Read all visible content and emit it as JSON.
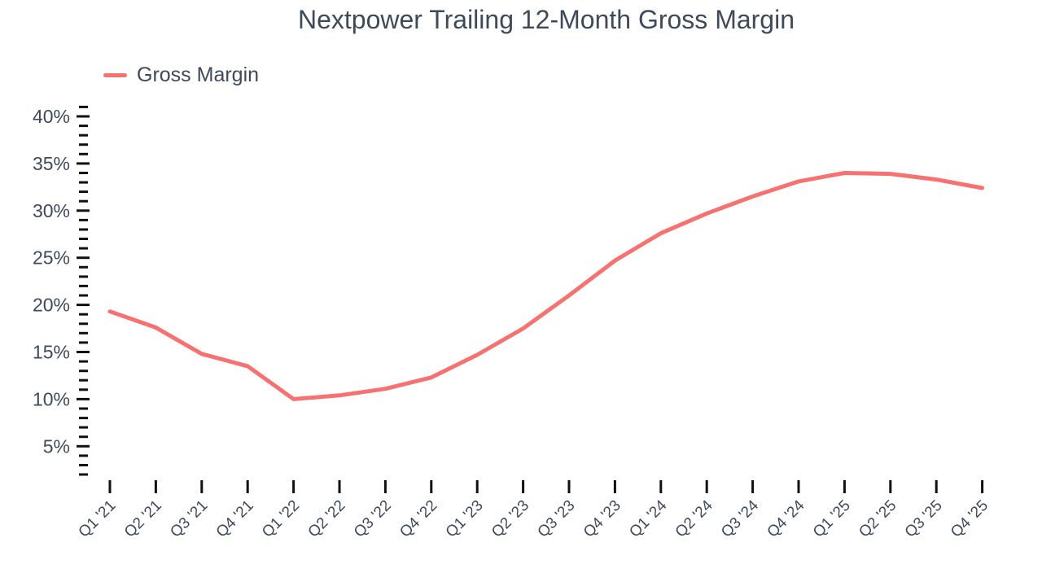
{
  "title": "Nextpower Trailing 12-Month Gross Margin",
  "legend": {
    "label": "Gross Margin"
  },
  "colors": {
    "line": "#f87171",
    "text": "#3e4a5a",
    "tick": "#111111",
    "background": "#ffffff"
  },
  "chart_data": {
    "type": "line",
    "title": "Nextpower Trailing 12-Month Gross Margin",
    "categories": [
      "Q1 '21",
      "Q2 '21",
      "Q3 '21",
      "Q4 '21",
      "Q1 '22",
      "Q2 '22",
      "Q3 '22",
      "Q4 '22",
      "Q1 '23",
      "Q2 '23",
      "Q3 '23",
      "Q4 '23",
      "Q1 '24",
      "Q2 '24",
      "Q3 '24",
      "Q4 '24",
      "Q1 '25",
      "Q2 '25",
      "Q3 '25",
      "Q4 '25"
    ],
    "series": [
      {
        "name": "Gross Margin",
        "color": "#f87171",
        "values": [
          19.3,
          17.6,
          14.8,
          13.5,
          10.0,
          10.4,
          11.1,
          12.3,
          14.7,
          17.5,
          21.0,
          24.7,
          27.6,
          29.7,
          31.5,
          33.1,
          34.0,
          33.9,
          33.3,
          32.4
        ]
      }
    ],
    "unit": "%",
    "xlabel": "",
    "ylabel": "",
    "ylim": [
      2,
      41
    ],
    "y_major_ticks": [
      5,
      10,
      15,
      20,
      25,
      30,
      35,
      40
    ],
    "y_tick_labels": [
      "5%",
      "10%",
      "15%",
      "20%",
      "25%",
      "30%",
      "35%",
      "40%"
    ],
    "y_minor_tick_step": 1,
    "grid": false,
    "axis_lines": false,
    "legend_position": "top-left",
    "x_label_rotation": -45
  }
}
